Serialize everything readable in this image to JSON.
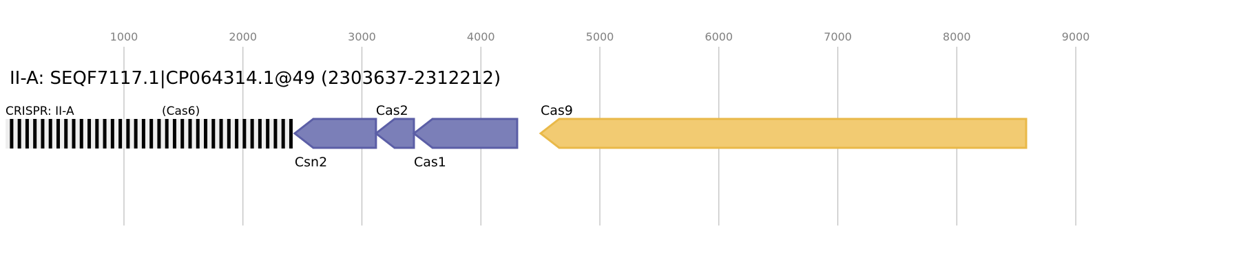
{
  "title": "II-A: SEQF7117.1|CP064314.1@49 (2303637-2312212)",
  "axis": {
    "ticks": [
      1000,
      2000,
      3000,
      4000,
      5000,
      6000,
      7000,
      8000,
      9000
    ]
  },
  "crispr": {
    "label": "CRISPR: II-A",
    "start": 5,
    "end": 2418,
    "repeats": 37
  },
  "genes": [
    {
      "name": "(Cas6)",
      "start": 2435,
      "end": 3118,
      "strand": "-",
      "label_pos": "none",
      "color": "#7b7fb8"
    },
    {
      "name": "Csn2",
      "start": 2435,
      "end": 3118,
      "strand": "-",
      "label_pos": "below",
      "color": "#7b7fb8"
    },
    {
      "name": "Cas2",
      "start": 3118,
      "end": 3437,
      "strand": "-",
      "label_pos": "above",
      "color": "#7b7fb8"
    },
    {
      "name": "Cas1",
      "start": 3437,
      "end": 4305,
      "strand": "-",
      "label_pos": "below",
      "color": "#7b7fb8"
    },
    {
      "name": "Cas9",
      "start": 4502,
      "end": 8583,
      "strand": "-",
      "label_pos": "above",
      "color": "#f2cb72"
    }
  ],
  "cas6_label": "(Cas6)",
  "colors": {
    "purple_stroke": "#5b5ea6",
    "yellow_stroke": "#e9b949",
    "grid": "#bbbbbb",
    "tick_text": "#808080"
  }
}
